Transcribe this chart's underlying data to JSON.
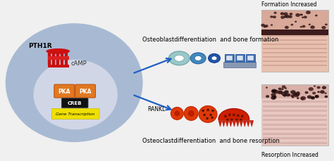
{
  "bg_color": "#f0f0f0",
  "cell_outer_color": "#a0b4d0",
  "cell_inner_color": "#bcc8dc",
  "nucleus_color": "#c8cce0",
  "pka_color": "#e07820",
  "pka_border": "#c05010",
  "creb_color": "#101010",
  "gene_color": "#f0e000",
  "receptor_color": "#cc2020",
  "arrow_color": "#2060c0",
  "ob_label": "Osteoblastdifferentiation  and bone formation",
  "oc_label": "Osteoclastdifferentiation  and bone resorption",
  "rankl_text": "RANKL",
  "pth1r_text": "PTH1R",
  "camp_text": "cAMP",
  "pka_text": "PKA",
  "creb_text": "CREB",
  "gene_text": "Gene Transcription",
  "formation_text": "Formation Increased",
  "resorption_text": "Resorption Increased"
}
